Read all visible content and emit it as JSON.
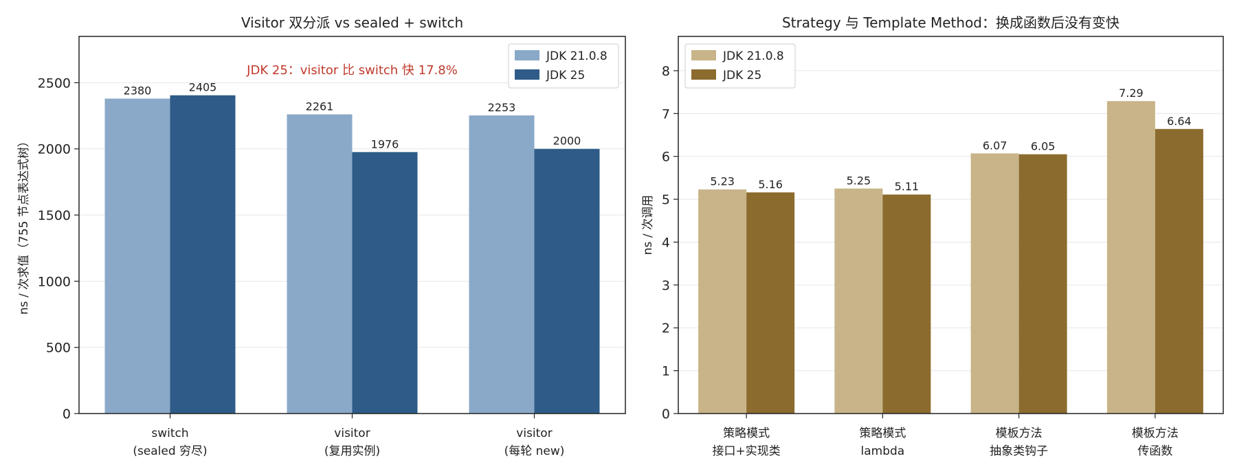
{
  "chart_data": [
    {
      "type": "bar",
      "title": "Visitor 双分派 vs sealed + switch",
      "xlabel": "",
      "ylabel": "ns / 次求值（755 节点表达式树）",
      "categories": [
        [
          "switch",
          "(sealed 穷尽)"
        ],
        [
          "visitor",
          "(复用实例)"
        ],
        [
          "visitor",
          "(每轮 new)"
        ]
      ],
      "series": [
        {
          "name": "JDK 21.0.8",
          "values": [
            2380,
            2261,
            2253
          ],
          "color": "#8aa9c8"
        },
        {
          "name": "JDK 25",
          "values": [
            2405,
            1976,
            2000
          ],
          "color": "#2e5b88"
        }
      ],
      "data_labels": [
        [
          "2380",
          "2261",
          "2253"
        ],
        [
          "2405",
          "1976",
          "2000"
        ]
      ],
      "ylim": [
        0,
        2850
      ],
      "yticks": [
        0,
        500,
        1000,
        1500,
        2000,
        2500
      ],
      "grid": "y",
      "legend_position": "top-right",
      "annotation": {
        "text": "JDK 25：visitor 比 switch 快 17.8%",
        "color": "#c0392b"
      }
    },
    {
      "type": "bar",
      "title": "Strategy 与 Template Method：换成函数后没有变快",
      "xlabel": "",
      "ylabel": "ns / 次调用",
      "categories": [
        [
          "策略模式",
          "接口+实现类"
        ],
        [
          "策略模式",
          "lambda"
        ],
        [
          "模板方法",
          "抽象类钩子"
        ],
        [
          "模板方法",
          "传函数"
        ]
      ],
      "series": [
        {
          "name": "JDK 21.0.8",
          "values": [
            5.23,
            5.25,
            6.07,
            7.29
          ],
          "color": "#c8b488"
        },
        {
          "name": "JDK 25",
          "values": [
            5.16,
            5.11,
            6.05,
            6.64
          ],
          "color": "#8b6b2e"
        }
      ],
      "data_labels": [
        [
          "5.23",
          "5.25",
          "6.07",
          "7.29"
        ],
        [
          "5.16",
          "5.11",
          "6.05",
          "6.64"
        ]
      ],
      "ylim": [
        0,
        8.8
      ],
      "yticks": [
        0,
        1,
        2,
        3,
        4,
        5,
        6,
        7,
        8
      ],
      "grid": "y",
      "legend_position": "top-left"
    }
  ]
}
